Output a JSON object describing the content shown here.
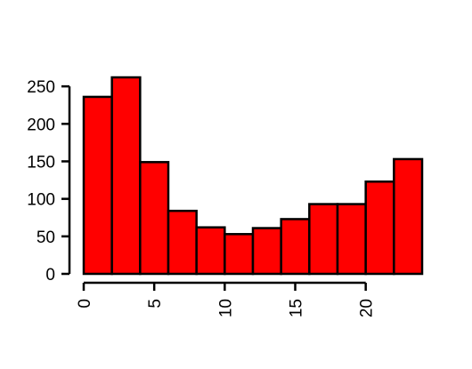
{
  "chart_data": {
    "type": "bar",
    "title": "",
    "xlabel": "",
    "ylabel": "",
    "bin_edges": [
      0,
      2,
      4,
      6,
      8,
      10,
      12,
      14,
      16,
      18,
      20,
      22,
      24
    ],
    "values": [
      236,
      262,
      149,
      84,
      62,
      53,
      61,
      73,
      93,
      93,
      123,
      153
    ],
    "xlim": [
      0,
      24
    ],
    "ylim": [
      0,
      262
    ],
    "x_ticks": [
      0,
      5,
      10,
      15,
      20
    ],
    "x_tick_labels": [
      "0",
      "5",
      "10",
      "15",
      "20"
    ],
    "y_ticks": [
      0,
      50,
      100,
      150,
      200,
      250
    ],
    "y_tick_labels": [
      "0",
      "50",
      "100",
      "150",
      "200",
      "250"
    ],
    "bar_color": "#ff0000",
    "edge_color": "#000000",
    "grid": false
  }
}
